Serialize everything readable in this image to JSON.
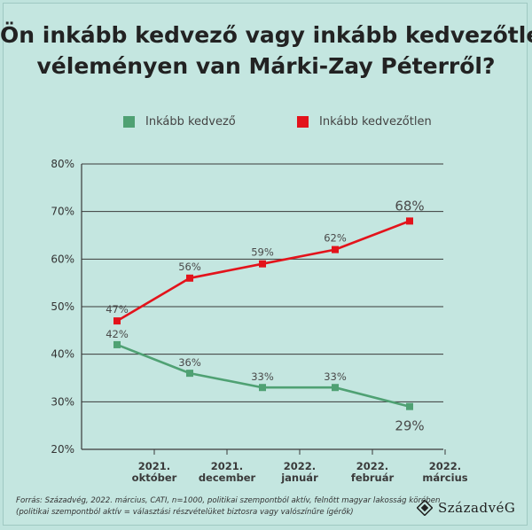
{
  "title_lines": [
    "Ön inkább kedvező vagy inkább kedvezőtlen",
    "véleményen van Márki-Zay Péterről?"
  ],
  "colors": {
    "background": "#c4e6e0",
    "favorable": "#4fa173",
    "unfavorable": "#e3131b",
    "gridline": "#3a3a3a",
    "axis_text": "#333333"
  },
  "chart_data": {
    "type": "line",
    "title": "Ön inkább kedvező vagy inkább kedvezőtlen véleményen van Márki-Zay Péterről?",
    "xlabel": "",
    "ylabel": "",
    "ylim": [
      20,
      80
    ],
    "yticks": [
      "20%",
      "30%",
      "40%",
      "50%",
      "60%",
      "70%",
      "80%"
    ],
    "x_tick_labels": [
      [
        "2021.",
        "október"
      ],
      [
        "2021.",
        "december"
      ],
      [
        "2022.",
        "január"
      ],
      [
        "2022.",
        "február"
      ],
      [
        "2022.",
        "március"
      ]
    ],
    "grid": true,
    "legend_position": "top",
    "series": [
      {
        "name": "Inkább kedvező",
        "color": "#4fa173",
        "values": [
          42,
          36,
          33,
          33,
          29
        ],
        "labels": [
          "42%",
          "36%",
          "33%",
          "33%",
          "29%"
        ]
      },
      {
        "name": "Inkább kedvezőtlen",
        "color": "#e3131b",
        "values": [
          47,
          56,
          59,
          62,
          68
        ],
        "labels": [
          "47%",
          "56%",
          "59%",
          "62%",
          "68%"
        ]
      }
    ]
  },
  "source_lines": [
    "Forrás: Századvég, 2022. március, CATI, n=1000, politikai szempontból aktív, felnőtt magyar lakosság körében",
    "(politikai szempontból aktív = választási részvételüket biztosra vagy valószínűre ígérők)"
  ],
  "logo_text": "SzázadvéG"
}
